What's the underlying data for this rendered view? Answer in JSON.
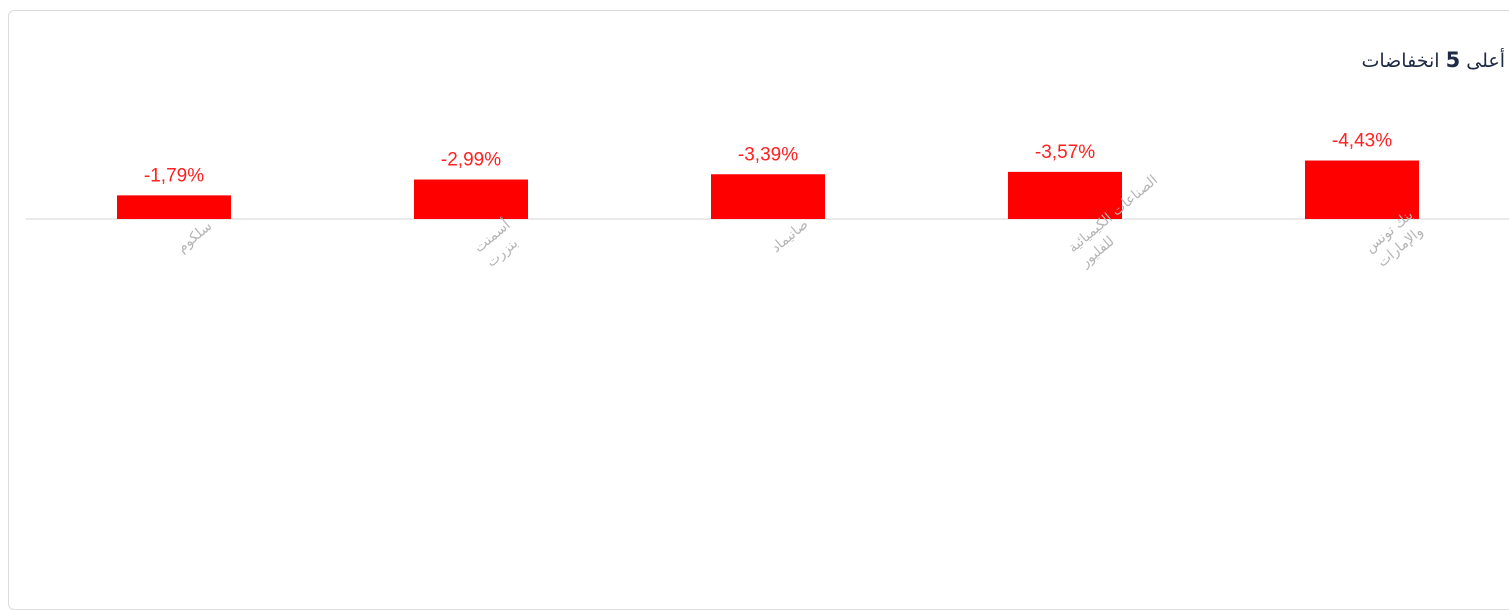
{
  "chart_data": {
    "type": "bar",
    "title_prefix": "أعلى",
    "title_number": "5",
    "title_suffix": "انخفاضات",
    "categories": [
      [
        "بنك تونس",
        "والإمارات"
      ],
      [
        "الصناعات الكيميائية",
        "للفليور"
      ],
      [
        "صانيماد"
      ],
      [
        "أسمنت",
        "بنزرت"
      ],
      [
        "سلكوم"
      ]
    ],
    "values": [
      -4.43,
      -3.57,
      -3.39,
      -2.99,
      -1.79
    ],
    "value_labels": [
      "-4,43%",
      "-3,57%",
      "-3,39%",
      "-2,99%",
      "-1,79%"
    ],
    "bar_color": "#ff0000",
    "label_color": "#ff2020",
    "axis_color": "#e3e3e3",
    "ylim": [
      -5.5,
      0
    ],
    "legend": "none",
    "grid": false
  }
}
